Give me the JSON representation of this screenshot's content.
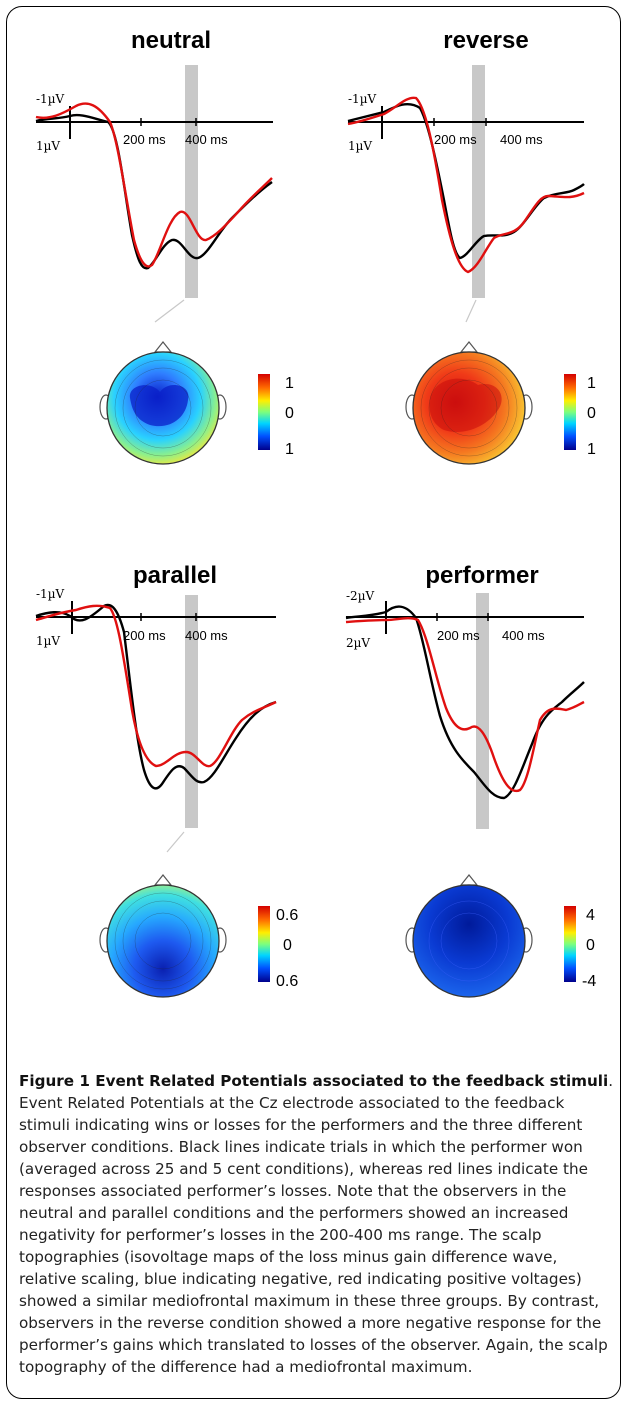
{
  "figure": {
    "panels": [
      {
        "title": "neutral",
        "neg_label": "-1µV",
        "pos_label": "1µV",
        "tick1": "200 ms",
        "tick2": "400 ms",
        "scale_top": "1",
        "scale_mid": "0",
        "scale_bot": "1",
        "map_polarity": "negative"
      },
      {
        "title": "reverse",
        "neg_label": "-1µV",
        "pos_label": "1µV",
        "tick1": "200 ms",
        "tick2": "400 ms",
        "scale_top": "1",
        "scale_mid": "0",
        "scale_bot": "1",
        "map_polarity": "positive"
      },
      {
        "title": "parallel",
        "neg_label": "-1µV",
        "pos_label": "1µV",
        "tick1": "200 ms",
        "tick2": "400 ms",
        "scale_top": "0.6",
        "scale_mid": "0",
        "scale_bot": "0.6",
        "map_polarity": "negative"
      },
      {
        "title": "performer",
        "neg_label": "-2µV",
        "pos_label": "2µV",
        "tick1": "200 ms",
        "tick2": "400 ms",
        "scale_top": "4",
        "scale_mid": "0",
        "scale_bot": "-4",
        "map_polarity": "negative-strong"
      }
    ],
    "colors": {
      "win_line": "#000000",
      "loss_line": "#e01010",
      "window_bar": "#c8c8c8"
    }
  },
  "caption": {
    "title": "Figure 1 Event Related Potentials associated to the feedback stimuli",
    "body": ". Event Related Potentials at the Cz electrode associated to the feedback stimuli indicating wins or losses for the performers and the three different observer conditions. Black lines indicate trials in which the performer won (averaged across 25 and 5 cent conditions), whereas red lines indicate the responses associated performer’s losses. Note that the observers in the neutral and parallel conditions and the performers showed an increased negativity for performer’s losses in the 200-400 ms range. The scalp topographies (isovoltage maps of the loss minus gain difference wave, relative scaling, blue indicating negative, red indicating positive voltages) showed a similar mediofrontal maximum in these three groups. By contrast, observers in the reverse condition showed a more negative response for the performer’s gains which translated to losses of the observer. Again, the scalp topography of the difference had a mediofrontal maximum."
  }
}
